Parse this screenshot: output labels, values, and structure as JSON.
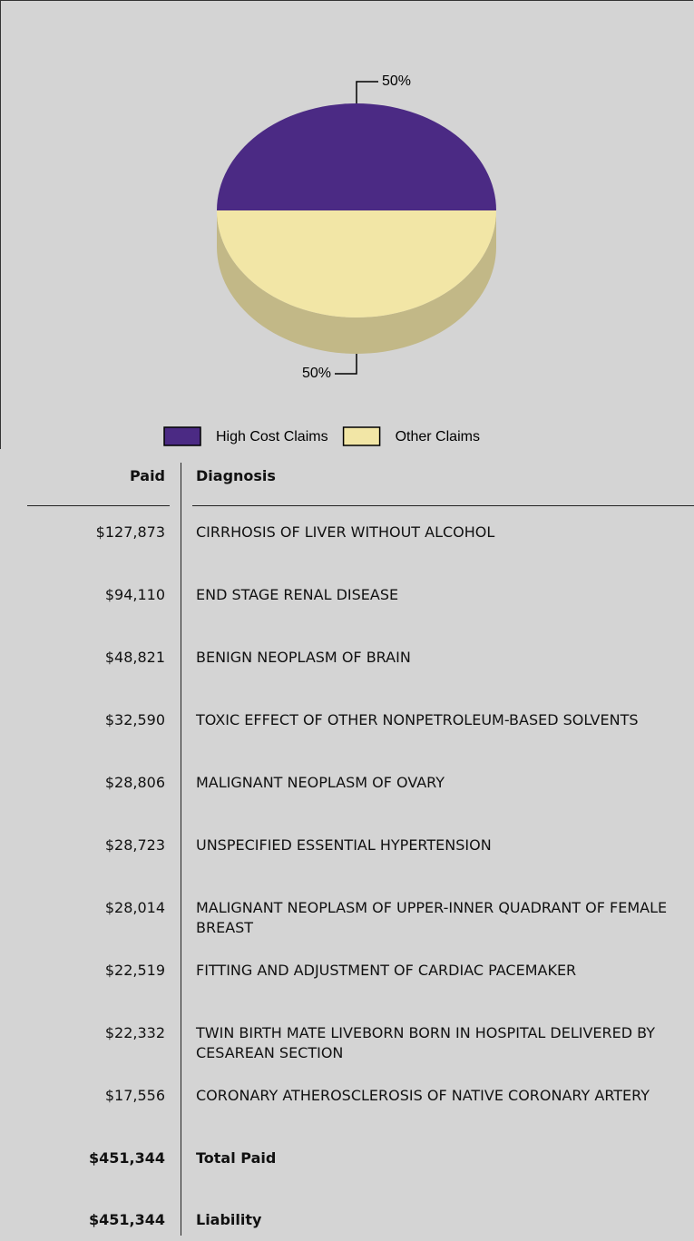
{
  "chart_data": {
    "type": "pie",
    "categories": [
      "High Cost Claims",
      "Other Claims"
    ],
    "values": [
      50,
      50
    ],
    "value_labels": [
      "50%",
      "50%"
    ],
    "colors": [
      "#4b2a84",
      "#f2e6a6"
    ],
    "side_colors": [
      "#37205f",
      "#c2b887"
    ],
    "legend": "bottom"
  },
  "table": {
    "header": [
      "Paid",
      "Diagnosis"
    ],
    "rows": [
      [
        "$127,873",
        "CIRRHOSIS OF LIVER WITHOUT ALCOHOL"
      ],
      [
        "$94,110",
        "END STAGE RENAL DISEASE"
      ],
      [
        "$48,821",
        "BENIGN NEOPLASM OF BRAIN"
      ],
      [
        "$32,590",
        "TOXIC EFFECT OF OTHER NONPETROLEUM-BASED SOLVENTS"
      ],
      [
        "$28,806",
        "MALIGNANT NEOPLASM OF OVARY"
      ],
      [
        "$28,723",
        "UNSPECIFIED ESSENTIAL HYPERTENSION"
      ],
      [
        "$28,014",
        "MALIGNANT NEOPLASM OF UPPER-INNER QUADRANT OF FEMALE BREAST"
      ],
      [
        "$22,519",
        "FITTING AND ADJUSTMENT OF CARDIAC PACEMAKER"
      ],
      [
        "$22,332",
        "TWIN BIRTH MATE LIVEBORN BORN IN HOSPITAL DELIVERED BY CESAREAN SECTION"
      ],
      [
        "$17,556",
        "CORONARY ATHEROSCLEROSIS OF NATIVE CORONARY ARTERY"
      ]
    ],
    "totals": [
      [
        "$451,344",
        "Total Paid"
      ],
      [
        "$451,344",
        "Liability"
      ]
    ]
  }
}
